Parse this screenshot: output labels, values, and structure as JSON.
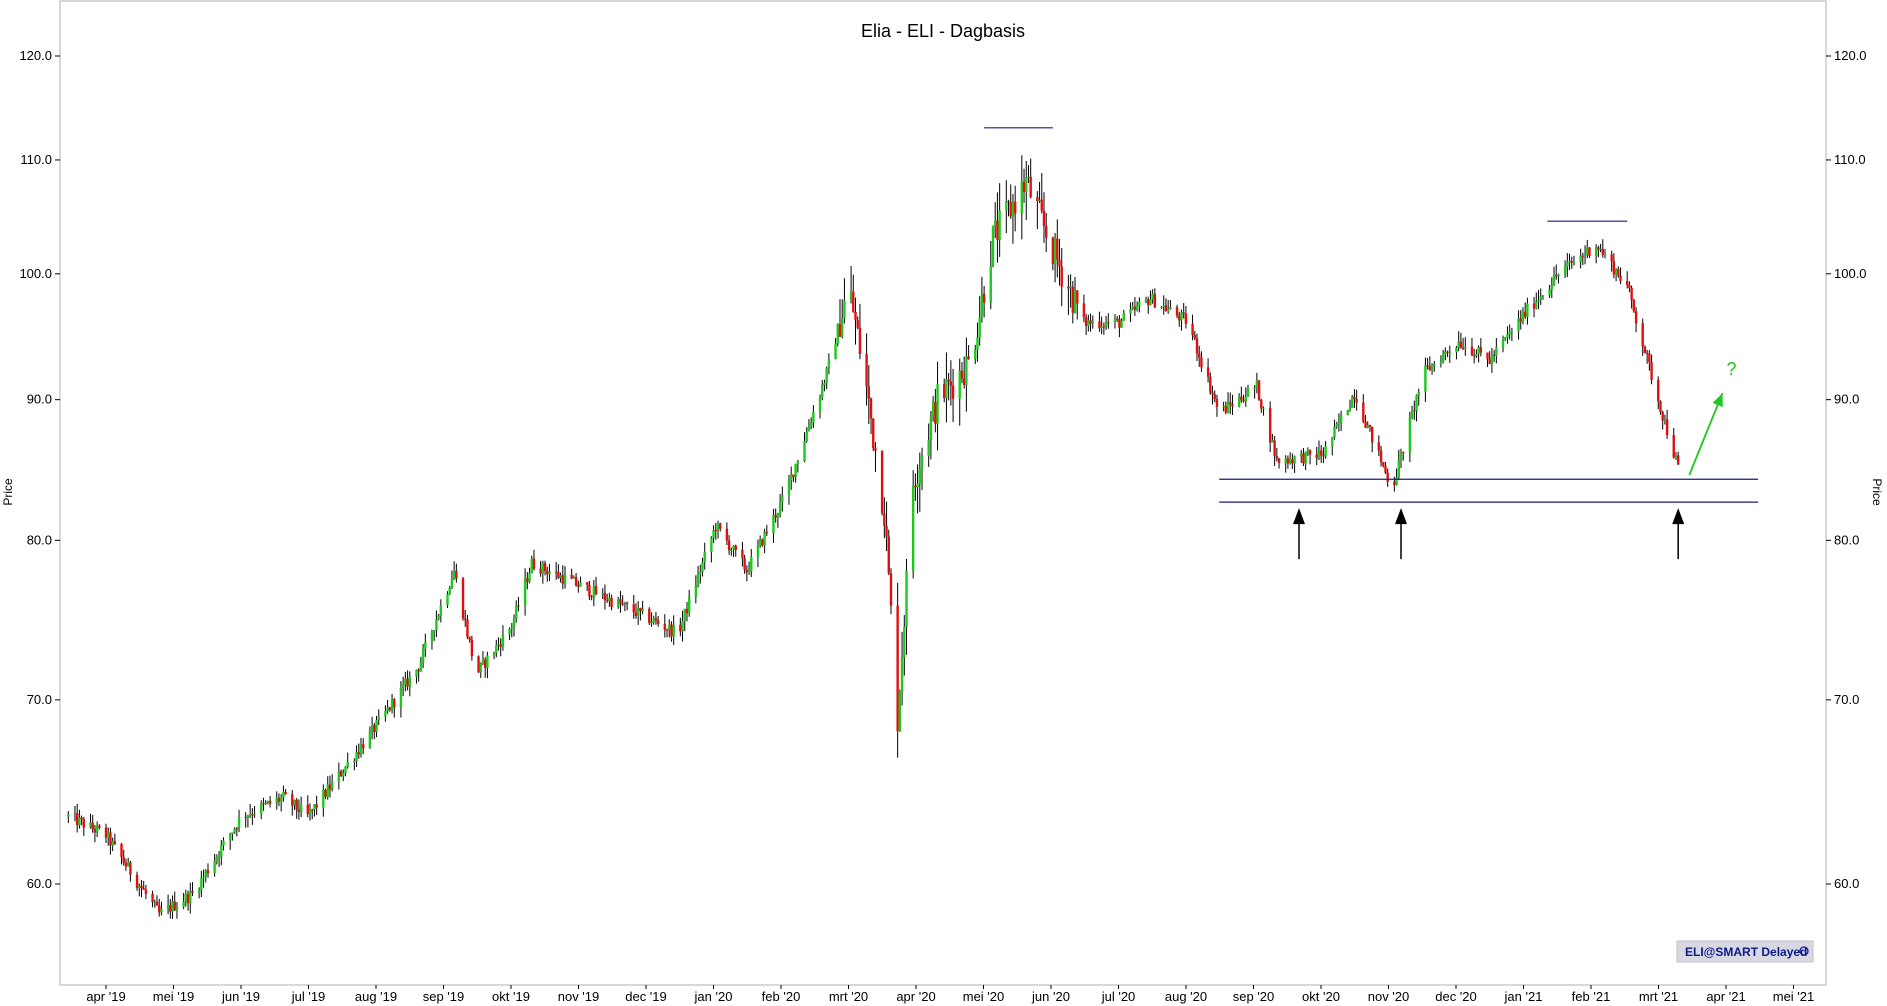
{
  "chart_data": {
    "type": "candlestick",
    "title": "Elia - ELI - Dagbasis",
    "ylabel_left": "Price",
    "ylabel_right": "Price",
    "y_scale": "log",
    "ylim": [
      55,
      124
    ],
    "y_ticks": [
      {
        "value": 60,
        "label": "60.0"
      },
      {
        "value": 70,
        "label": "70.0"
      },
      {
        "value": 80,
        "label": "80.0"
      },
      {
        "value": 90,
        "label": "90.0"
      },
      {
        "value": 100,
        "label": "100.0"
      },
      {
        "value": 110,
        "label": "110.0"
      },
      {
        "value": 120,
        "label": "120.0"
      }
    ],
    "x_ticks": [
      "apr '19",
      "mei '19",
      "jun '19",
      "jul '19",
      "aug '19",
      "sep '19",
      "okt '19",
      "nov '19",
      "dec '19",
      "jan '20",
      "feb '20",
      "mrt '20",
      "apr '20",
      "mei '20",
      "jun '20",
      "jul '20",
      "aug '20",
      "sep '20",
      "okt '20",
      "nov '20",
      "dec '20",
      "jan '21",
      "feb '21",
      "mrt '21",
      "apr '21",
      "mei '21"
    ],
    "colors": {
      "up": "#1ec81e",
      "down": "#e01010",
      "wick": "#000000",
      "line": "#1a1a80",
      "annotation_arrow": "#1ec81e"
    },
    "price_path": [
      {
        "date": "2019-03-15",
        "price": 63.5
      },
      {
        "date": "2019-04-01",
        "price": 62.5
      },
      {
        "date": "2019-04-25",
        "price": 58.5
      },
      {
        "date": "2019-05-10",
        "price": 59.5
      },
      {
        "date": "2019-06-01",
        "price": 63.5
      },
      {
        "date": "2019-06-20",
        "price": 64.5
      },
      {
        "date": "2019-07-01",
        "price": 63.5
      },
      {
        "date": "2019-08-01",
        "price": 68.5
      },
      {
        "date": "2019-08-20",
        "price": 72.0
      },
      {
        "date": "2019-09-05",
        "price": 78.0
      },
      {
        "date": "2019-09-15",
        "price": 71.5
      },
      {
        "date": "2019-10-01",
        "price": 74.5
      },
      {
        "date": "2019-10-10",
        "price": 78.5
      },
      {
        "date": "2019-11-01",
        "price": 77.0
      },
      {
        "date": "2019-12-01",
        "price": 75.0
      },
      {
        "date": "2019-12-15",
        "price": 74.0
      },
      {
        "date": "2020-01-01",
        "price": 81.0
      },
      {
        "date": "2020-01-15",
        "price": 78.0
      },
      {
        "date": "2020-02-01",
        "price": 83.0
      },
      {
        "date": "2020-02-20",
        "price": 92.0
      },
      {
        "date": "2020-03-01",
        "price": 99.0
      },
      {
        "date": "2020-03-08",
        "price": 92.0
      },
      {
        "date": "2020-03-17",
        "price": 82.0
      },
      {
        "date": "2020-03-23",
        "price": 69.0
      },
      {
        "date": "2020-03-30",
        "price": 84.0
      },
      {
        "date": "2020-04-10",
        "price": 90.0
      },
      {
        "date": "2020-04-25",
        "price": 93.0
      },
      {
        "date": "2020-05-05",
        "price": 103.0
      },
      {
        "date": "2020-05-20",
        "price": 108.0
      },
      {
        "date": "2020-06-01",
        "price": 102.0
      },
      {
        "date": "2020-06-15",
        "price": 96.0
      },
      {
        "date": "2020-07-01",
        "price": 96.0
      },
      {
        "date": "2020-07-15",
        "price": 98.0
      },
      {
        "date": "2020-08-01",
        "price": 96.0
      },
      {
        "date": "2020-08-15",
        "price": 89.0
      },
      {
        "date": "2020-09-01",
        "price": 91.0
      },
      {
        "date": "2020-09-10",
        "price": 85.5
      },
      {
        "date": "2020-10-01",
        "price": 86.0
      },
      {
        "date": "2020-10-15",
        "price": 90.5
      },
      {
        "date": "2020-11-01",
        "price": 83.5
      },
      {
        "date": "2020-11-15",
        "price": 92.0
      },
      {
        "date": "2020-12-01",
        "price": 94.5
      },
      {
        "date": "2020-12-15",
        "price": 93.0
      },
      {
        "date": "2021-01-01",
        "price": 97.0
      },
      {
        "date": "2021-01-15",
        "price": 100.0
      },
      {
        "date": "2021-02-01",
        "price": 102.5
      },
      {
        "date": "2021-02-15",
        "price": 99.0
      },
      {
        "date": "2021-03-01",
        "price": 90.0
      },
      {
        "date": "2021-03-10",
        "price": 85.0
      }
    ],
    "horizontal_lines": [
      {
        "from": "2020-05-01",
        "to": "2020-06-01",
        "price": 113.0
      },
      {
        "from": "2021-01-10",
        "to": "2021-02-15",
        "price": 104.5
      },
      {
        "from": "2020-08-15",
        "to": "2021-04-15",
        "price": 84.2
      },
      {
        "from": "2020-08-15",
        "to": "2021-04-15",
        "price": 82.6
      }
    ],
    "arrows_up": [
      "2020-09-20",
      "2020-11-05",
      "2021-03-10"
    ],
    "annotation": {
      "text": "?",
      "from_date": "2021-03-15",
      "from_price": 84.5,
      "to_date": "2021-03-30",
      "to_price": 90.5
    },
    "badge": "ELI@SMART Delayed"
  }
}
